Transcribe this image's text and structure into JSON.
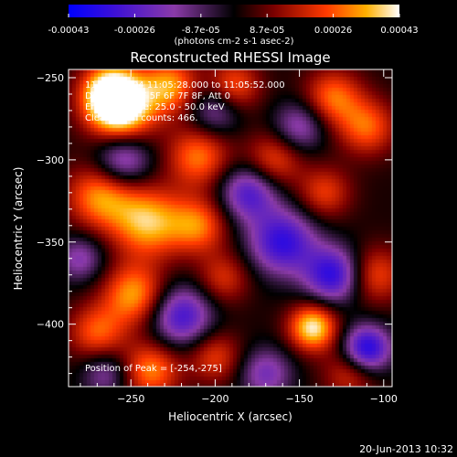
{
  "chart_data": {
    "type": "heatmap",
    "title": "Reconstructed RHESSI Image",
    "xlabel": "Heliocentric X (arcsec)",
    "ylabel": "Heliocentric Y (arcsec)",
    "xlim": [
      -287,
      -95
    ],
    "ylim": [
      -438,
      -245
    ],
    "xticks": [
      -250,
      -200,
      -150,
      -100
    ],
    "yticks": [
      -250,
      -300,
      -350,
      -400
    ],
    "colorbar": {
      "range": [
        -0.00043,
        0.00043
      ],
      "tick_labels": [
        "-0.00043",
        "-0.00026",
        "-8.7e-05",
        "8.7e-05",
        "0.00026",
        "0.00043"
      ],
      "units_label": "(photons cm-2 s-1 asec-2)"
    },
    "annotations": [
      "11-Aug-2004 11:05:28.000 to 11:05:52.000",
      "Detectors: 4F 5F 6F 7F 8F, Att 0",
      "Energy Range: 25.0 - 50.0 keV",
      "Clean. Total counts: 466."
    ],
    "peak_label": "Position of Peak = [-254,-275]",
    "peak": {
      "x": -254,
      "y": -275
    },
    "blobs": [
      {
        "x": -256,
        "y": -270,
        "v": 0.00043,
        "r": 14
      },
      {
        "x": -262,
        "y": -258,
        "v": 0.00038,
        "r": 12
      },
      {
        "x": -227,
        "y": -255,
        "v": 0.0003,
        "r": 12
      },
      {
        "x": -189,
        "y": -255,
        "v": 0.00024,
        "r": 11
      },
      {
        "x": -130,
        "y": -262,
        "v": 0.00026,
        "r": 12
      },
      {
        "x": -110,
        "y": -280,
        "v": 0.00025,
        "r": 12
      },
      {
        "x": -210,
        "y": -298,
        "v": 0.00027,
        "r": 13
      },
      {
        "x": -268,
        "y": -322,
        "v": 0.0003,
        "r": 14
      },
      {
        "x": -240,
        "y": -338,
        "v": 0.00034,
        "r": 15
      },
      {
        "x": -210,
        "y": -340,
        "v": 0.00026,
        "r": 12
      },
      {
        "x": -165,
        "y": -300,
        "v": 0.00022,
        "r": 12
      },
      {
        "x": -135,
        "y": -320,
        "v": 0.0002,
        "r": 11
      },
      {
        "x": -105,
        "y": -370,
        "v": 0.00022,
        "r": 12
      },
      {
        "x": -248,
        "y": -382,
        "v": 0.00031,
        "r": 13
      },
      {
        "x": -270,
        "y": -405,
        "v": 0.00024,
        "r": 12
      },
      {
        "x": -195,
        "y": -372,
        "v": 0.00018,
        "r": 11
      },
      {
        "x": -142,
        "y": -402,
        "v": 0.0004,
        "r": 10
      },
      {
        "x": -200,
        "y": -420,
        "v": 0.0002,
        "r": 11
      },
      {
        "x": -238,
        "y": -428,
        "v": 0.00028,
        "r": 12
      },
      {
        "x": -120,
        "y": -430,
        "v": 0.00018,
        "r": 11
      },
      {
        "x": -160,
        "y": -350,
        "v": -0.00035,
        "r": 14
      },
      {
        "x": -180,
        "y": -320,
        "v": -0.0003,
        "r": 12
      },
      {
        "x": -255,
        "y": -300,
        "v": -0.00028,
        "r": 12
      },
      {
        "x": -220,
        "y": -395,
        "v": -0.00032,
        "r": 13
      },
      {
        "x": -130,
        "y": -370,
        "v": -0.00036,
        "r": 12
      },
      {
        "x": -110,
        "y": -415,
        "v": -0.0004,
        "r": 10
      },
      {
        "x": -280,
        "y": -360,
        "v": -0.0002,
        "r": 10
      },
      {
        "x": -150,
        "y": -280,
        "v": -0.00022,
        "r": 11
      },
      {
        "x": -200,
        "y": -270,
        "v": -0.0002,
        "r": 11
      },
      {
        "x": -170,
        "y": -430,
        "v": -0.00022,
        "r": 11
      },
      {
        "x": -265,
        "y": -430,
        "v": -0.00018,
        "r": 10
      }
    ],
    "grid": false,
    "legend": "colorbar-top"
  },
  "footer": {
    "date": "20-Jun-2013 10:32"
  }
}
